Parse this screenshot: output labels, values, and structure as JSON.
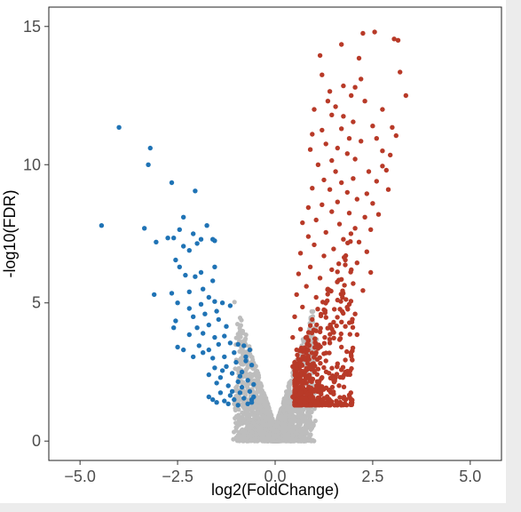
{
  "chart_data": {
    "type": "scatter",
    "title": "",
    "xlabel": "log2(FoldChange)",
    "ylabel": "-log10(FDR)",
    "xlim": [
      -5.8,
      5.8
    ],
    "ylim": [
      -0.7,
      15.7
    ],
    "xticks": [
      -5.0,
      -2.5,
      0.0,
      2.5,
      5.0
    ],
    "xtick_labels": [
      "−5.0",
      "−2.5",
      "0.0",
      "2.5",
      "5.0"
    ],
    "yticks": [
      0,
      5,
      10,
      15
    ],
    "ytick_labels": [
      "0",
      "5",
      "10",
      "15"
    ],
    "grid": false,
    "legend": "none",
    "colors": {
      "down": "#1f73b5",
      "up": "#b83a28",
      "ns": "#bdbdbd"
    },
    "series": [
      {
        "key": "down",
        "points": [
          [
            -4.45,
            7.8
          ],
          [
            -4.0,
            11.35
          ],
          [
            -3.2,
            10.6
          ],
          [
            -3.25,
            10.0
          ],
          [
            -3.35,
            7.7
          ],
          [
            -3.05,
            7.2
          ],
          [
            -2.75,
            7.35
          ],
          [
            -2.65,
            9.35
          ],
          [
            -2.6,
            7.35
          ],
          [
            -2.35,
            8.1
          ],
          [
            -2.45,
            7.65
          ],
          [
            -2.1,
            7.5
          ],
          [
            -1.9,
            7.3
          ],
          [
            -1.75,
            7.8
          ],
          [
            -1.55,
            7.25
          ],
          [
            -1.6,
            7.3
          ],
          [
            -2.05,
            9.05
          ],
          [
            -2.35,
            7.05
          ],
          [
            -2.0,
            7.15
          ],
          [
            -2.2,
            6.9
          ],
          [
            -2.55,
            6.55
          ],
          [
            -2.45,
            6.3
          ],
          [
            -2.3,
            6.0
          ],
          [
            -2.05,
            5.95
          ],
          [
            -1.9,
            6.1
          ],
          [
            -1.55,
            6.3
          ],
          [
            -1.6,
            5.8
          ],
          [
            -1.85,
            5.5
          ],
          [
            -2.2,
            5.4
          ],
          [
            -2.65,
            5.35
          ],
          [
            -3.1,
            5.3
          ],
          [
            -2.5,
            5.0
          ],
          [
            -2.2,
            4.8
          ],
          [
            -1.9,
            4.95
          ],
          [
            -1.7,
            5.2
          ],
          [
            -1.55,
            5.05
          ],
          [
            -1.35,
            5.0
          ],
          [
            -1.5,
            4.7
          ],
          [
            -1.8,
            4.6
          ],
          [
            -2.1,
            4.5
          ],
          [
            -2.55,
            4.35
          ],
          [
            -2.6,
            4.1
          ],
          [
            -2.0,
            4.1
          ],
          [
            -1.7,
            4.2
          ],
          [
            -1.45,
            4.4
          ],
          [
            -1.25,
            4.15
          ],
          [
            -1.15,
            4.9
          ],
          [
            -1.3,
            3.8
          ],
          [
            -1.55,
            3.75
          ],
          [
            -1.85,
            3.9
          ],
          [
            -2.2,
            3.85
          ],
          [
            -2.5,
            3.4
          ],
          [
            -2.35,
            3.3
          ],
          [
            -1.95,
            3.45
          ],
          [
            -1.7,
            3.3
          ],
          [
            -1.45,
            3.5
          ],
          [
            -1.15,
            3.55
          ],
          [
            -0.95,
            3.5
          ],
          [
            -0.8,
            3.45
          ],
          [
            -0.65,
            3.3
          ],
          [
            -1.05,
            3.2
          ],
          [
            -1.3,
            3.05
          ],
          [
            -1.6,
            3.0
          ],
          [
            -1.85,
            3.2
          ],
          [
            -2.1,
            3.05
          ],
          [
            -1.55,
            2.65
          ],
          [
            -1.25,
            2.7
          ],
          [
            -1.0,
            2.85
          ],
          [
            -0.75,
            2.9
          ],
          [
            -0.6,
            2.75
          ],
          [
            -0.85,
            2.5
          ],
          [
            -1.1,
            2.45
          ],
          [
            -1.4,
            2.3
          ],
          [
            -1.7,
            2.4
          ],
          [
            -1.5,
            2.1
          ],
          [
            -1.2,
            2.0
          ],
          [
            -0.95,
            2.15
          ],
          [
            -0.7,
            2.2
          ],
          [
            -0.55,
            2.05
          ],
          [
            -0.65,
            1.8
          ],
          [
            -0.9,
            1.75
          ],
          [
            -1.15,
            1.65
          ],
          [
            -1.4,
            1.75
          ],
          [
            -1.6,
            1.5
          ],
          [
            -1.3,
            1.45
          ],
          [
            -1.05,
            1.5
          ],
          [
            -0.8,
            1.55
          ],
          [
            -0.6,
            1.5
          ],
          [
            -0.7,
            1.35
          ],
          [
            -1.5,
            1.4
          ],
          [
            -0.95,
            1.3
          ],
          [
            -1.2,
            1.35
          ],
          [
            -0.55,
            1.6
          ],
          [
            -0.75,
            3.05
          ],
          [
            -0.9,
            2.35
          ],
          [
            -1.35,
            2.55
          ],
          [
            -1.7,
            1.6
          ],
          [
            -0.6,
            1.4
          ],
          [
            -1.1,
            1.8
          ],
          [
            -0.85,
            1.95
          ]
        ]
      },
      {
        "key": "up",
        "points": [
          [
            2.25,
            14.75
          ],
          [
            2.55,
            14.8
          ],
          [
            3.05,
            14.55
          ],
          [
            3.15,
            14.5
          ],
          [
            1.7,
            14.35
          ],
          [
            2.15,
            13.85
          ],
          [
            1.15,
            13.95
          ],
          [
            3.2,
            13.35
          ],
          [
            1.2,
            13.25
          ],
          [
            1.75,
            12.85
          ],
          [
            2.05,
            12.8
          ],
          [
            1.4,
            12.65
          ],
          [
            1.95,
            12.5
          ],
          [
            2.3,
            12.3
          ],
          [
            3.35,
            12.5
          ],
          [
            1.55,
            12.1
          ],
          [
            1.0,
            12.0
          ],
          [
            1.45,
            11.8
          ],
          [
            2.75,
            12.0
          ],
          [
            2.0,
            11.55
          ],
          [
            1.7,
            11.3
          ],
          [
            1.2,
            11.25
          ],
          [
            2.5,
            11.4
          ],
          [
            3.0,
            11.35
          ],
          [
            0.95,
            11.1
          ],
          [
            1.9,
            10.95
          ],
          [
            2.2,
            10.85
          ],
          [
            2.6,
            10.95
          ],
          [
            3.1,
            11.05
          ],
          [
            1.3,
            10.75
          ],
          [
            1.6,
            10.6
          ],
          [
            1.85,
            10.4
          ],
          [
            2.05,
            10.2
          ],
          [
            2.75,
            10.5
          ],
          [
            1.45,
            10.15
          ],
          [
            2.95,
            10.35
          ],
          [
            1.1,
            10.0
          ],
          [
            2.75,
            9.95
          ],
          [
            2.85,
            9.8
          ],
          [
            1.55,
            9.75
          ],
          [
            1.25,
            9.45
          ],
          [
            1.7,
            9.35
          ],
          [
            2.0,
            9.5
          ],
          [
            2.6,
            9.4
          ],
          [
            0.95,
            9.15
          ],
          [
            1.4,
            9.1
          ],
          [
            1.85,
            9.0
          ],
          [
            2.35,
            8.95
          ],
          [
            2.1,
            8.75
          ],
          [
            1.6,
            8.65
          ],
          [
            1.2,
            8.55
          ],
          [
            0.85,
            8.45
          ],
          [
            2.5,
            8.6
          ],
          [
            1.45,
            8.3
          ],
          [
            1.9,
            8.25
          ],
          [
            2.3,
            8.1
          ],
          [
            1.05,
            8.0
          ],
          [
            0.7,
            7.9
          ],
          [
            1.65,
            7.85
          ],
          [
            2.05,
            7.7
          ],
          [
            2.45,
            7.65
          ],
          [
            1.3,
            7.55
          ],
          [
            0.85,
            7.4
          ],
          [
            1.75,
            7.3
          ],
          [
            2.15,
            7.2
          ],
          [
            1.0,
            7.1
          ],
          [
            1.5,
            6.95
          ],
          [
            2.35,
            6.85
          ],
          [
            0.65,
            6.8
          ],
          [
            1.25,
            6.7
          ],
          [
            1.8,
            6.55
          ],
          [
            2.1,
            6.45
          ],
          [
            0.9,
            6.3
          ],
          [
            1.45,
            6.2
          ],
          [
            2.45,
            6.1
          ],
          [
            0.6,
            6.05
          ],
          [
            1.15,
            5.9
          ],
          [
            1.7,
            5.85
          ],
          [
            2.0,
            5.7
          ],
          [
            0.8,
            5.6
          ],
          [
            1.35,
            5.5
          ],
          [
            2.25,
            5.45
          ],
          [
            0.55,
            5.3
          ],
          [
            1.05,
            5.2
          ],
          [
            1.6,
            5.1
          ],
          [
            1.9,
            4.95
          ],
          [
            0.7,
            4.85
          ],
          [
            1.25,
            4.75
          ],
          [
            2.05,
            4.6
          ],
          [
            0.5,
            4.5
          ],
          [
            0.95,
            4.4
          ],
          [
            1.5,
            4.3
          ],
          [
            1.8,
            4.15
          ],
          [
            0.65,
            4.05
          ],
          [
            1.15,
            3.95
          ],
          [
            2.1,
            3.85
          ],
          [
            0.45,
            3.75
          ],
          [
            0.85,
            3.65
          ],
          [
            1.4,
            3.55
          ],
          [
            1.7,
            3.4
          ],
          [
            0.55,
            3.3
          ],
          [
            1.05,
            3.2
          ],
          [
            1.95,
            3.1
          ],
          [
            0.75,
            3.0
          ],
          [
            1.3,
            2.9
          ],
          [
            1.6,
            2.8
          ],
          [
            0.45,
            2.7
          ],
          [
            0.95,
            2.6
          ],
          [
            1.8,
            2.5
          ],
          [
            0.6,
            2.4
          ],
          [
            1.2,
            2.3
          ],
          [
            1.5,
            2.2
          ],
          [
            0.8,
            2.1
          ],
          [
            0.5,
            2.0
          ],
          [
            1.05,
            1.9
          ],
          [
            1.4,
            1.85
          ],
          [
            0.65,
            1.75
          ],
          [
            0.9,
            1.6
          ],
          [
            1.25,
            1.55
          ],
          [
            0.55,
            1.5
          ],
          [
            0.75,
            1.4
          ],
          [
            1.1,
            1.35
          ],
          [
            0.45,
            1.6
          ],
          [
            2.2,
            13.1
          ],
          [
            2.9,
            9.1
          ],
          [
            1.35,
            12.3
          ],
          [
            2.65,
            8.2
          ],
          [
            0.9,
            10.55
          ],
          [
            1.75,
            11.75
          ],
          [
            2.4,
            9.75
          ]
        ]
      }
    ]
  }
}
